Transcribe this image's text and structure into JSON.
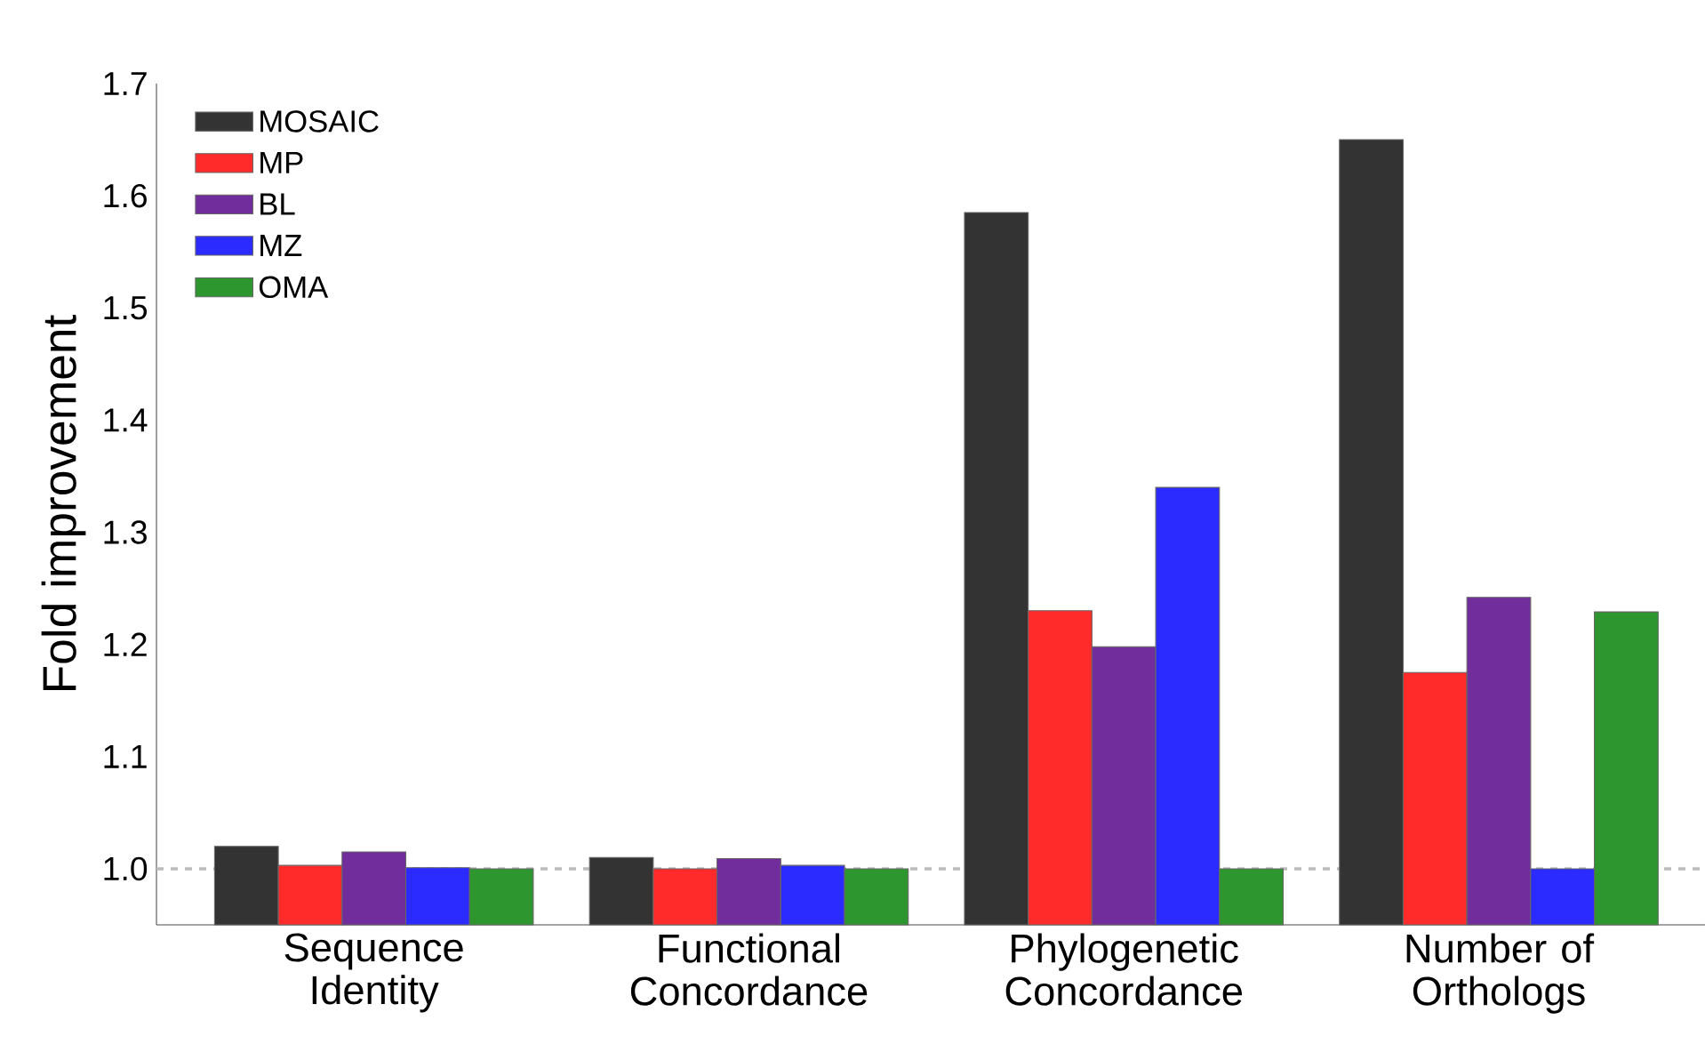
{
  "chart_data": {
    "type": "bar",
    "ylabel": "Fold improvement",
    "categories": [
      "Sequence Identity",
      "Functional Concordance",
      "Phylogenetic Concordance",
      "Number of Orthologs"
    ],
    "series": [
      {
        "name": "MOSAIC",
        "color": "#333333",
        "values": [
          1.02,
          1.01,
          1.585,
          1.65
        ]
      },
      {
        "name": "MP",
        "color": "#ff2a2a",
        "values": [
          1.003,
          1.0,
          1.23,
          1.175
        ]
      },
      {
        "name": "BL",
        "color": "#712d9b",
        "values": [
          1.015,
          1.009,
          1.198,
          1.242
        ]
      },
      {
        "name": "MZ",
        "color": "#2b2bff",
        "values": [
          1.001,
          1.003,
          1.34,
          1.0
        ]
      },
      {
        "name": "OMA",
        "color": "#2e962e",
        "values": [
          1.0,
          1.0,
          1.0,
          1.229
        ]
      }
    ],
    "ylim": [
      0.95,
      1.7
    ],
    "yticks": [
      {
        "value": 1.0,
        "label": "1.0"
      },
      1.1,
      1.2,
      1.3,
      1.4,
      1.5,
      1.6,
      1.7
    ],
    "ref_lines": [
      {
        "axis": "y",
        "value": 1.0,
        "color": "#bbbbbb",
        "line_style": "dashed"
      }
    ],
    "legend": "top left",
    "grid": false
  }
}
